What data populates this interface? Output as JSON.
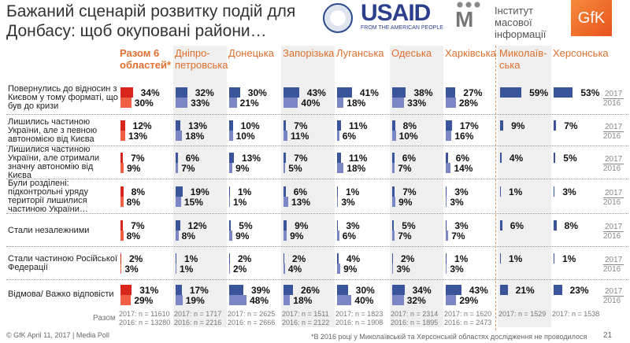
{
  "title": "Бажаний сценарій розвитку подій для Донбасу: щоб окуповані райони…",
  "logos": {
    "usaid": {
      "main": "USAID",
      "sub": "FROM THE AMERICAN PEOPLE"
    },
    "imi": "Інститут масової інформації",
    "gfk": "GfK"
  },
  "colors": {
    "total_2017": "#d9261c",
    "total_2016": "#ee5f44",
    "region_2017": "#3b559c",
    "region_2016": "#7a87c4",
    "header": "#e0702e"
  },
  "chart_data": {
    "type": "bar",
    "orientation": "horizontal",
    "columns": [
      "Разом 6 областей*",
      "Дніпро-петровська",
      "Донецька",
      "Запорізька",
      "Луганська",
      "Одеська",
      "Харківська",
      "Миколаїв-ська",
      "Херсонська"
    ],
    "series_years": [
      "2017",
      "2016"
    ],
    "rows": [
      {
        "label": "Повернулись до відносин з Києвом у тому форматі, що був до кризи",
        "values": [
          [
            "34%",
            "30%"
          ],
          [
            "32%",
            "33%"
          ],
          [
            "30%",
            "21%"
          ],
          [
            "43%",
            "40%"
          ],
          [
            "41%",
            "18%"
          ],
          [
            "38%",
            "33%"
          ],
          [
            "27%",
            "28%"
          ],
          [
            "59%",
            null
          ],
          [
            "53%",
            null
          ]
        ]
      },
      {
        "label": "Лишились частиною України, але з певною автономією від Києва",
        "values": [
          [
            "12%",
            "13%"
          ],
          [
            "13%",
            "18%"
          ],
          [
            "10%",
            "10%"
          ],
          [
            "7%",
            "11%"
          ],
          [
            "11%",
            "6%"
          ],
          [
            "8%",
            "10%"
          ],
          [
            "17%",
            "16%"
          ],
          [
            "9%",
            null
          ],
          [
            "7%",
            null
          ]
        ]
      },
      {
        "label": "Лишилися частиною України, але отримали значну автономію від Києва",
        "values": [
          [
            "7%",
            "9%"
          ],
          [
            "6%",
            "7%"
          ],
          [
            "13%",
            "9%"
          ],
          [
            "7%",
            "5%"
          ],
          [
            "11%",
            "18%"
          ],
          [
            "6%",
            "7%"
          ],
          [
            "6%",
            "14%"
          ],
          [
            "4%",
            null
          ],
          [
            "5%",
            null
          ]
        ]
      },
      {
        "label": "Були розділені: підконтрольні уряду території лишилися частиною України…",
        "values": [
          [
            "8%",
            "8%"
          ],
          [
            "19%",
            "15%"
          ],
          [
            "1%",
            "1%"
          ],
          [
            "6%",
            "13%"
          ],
          [
            "1%",
            "3%"
          ],
          [
            "7%",
            "9%"
          ],
          [
            "3%",
            "3%"
          ],
          [
            "1%",
            null
          ],
          [
            "3%",
            null
          ]
        ]
      },
      {
        "label": "Стали незалежними",
        "values": [
          [
            "7%",
            "8%"
          ],
          [
            "12%",
            "8%"
          ],
          [
            "5%",
            "9%"
          ],
          [
            "9%",
            "9%"
          ],
          [
            "3%",
            "6%"
          ],
          [
            "5%",
            "7%"
          ],
          [
            "3%",
            "7%"
          ],
          [
            "6%",
            null
          ],
          [
            "8%",
            null
          ]
        ]
      },
      {
        "label": "Стали частиною Російської Федерації",
        "values": [
          [
            "2%",
            "3%"
          ],
          [
            "1%",
            "1%"
          ],
          [
            "2%",
            "2%"
          ],
          [
            "2%",
            "4%"
          ],
          [
            "4%",
            "9%"
          ],
          [
            "2%",
            "3%"
          ],
          [
            "1%",
            "3%"
          ],
          [
            "1%",
            null
          ],
          [
            "1%",
            null
          ]
        ]
      },
      {
        "label": "Відмова/ Важко відповісти",
        "values": [
          [
            "31%",
            "29%"
          ],
          [
            "17%",
            "19%"
          ],
          [
            "39%",
            "48%"
          ],
          [
            "26%",
            "18%"
          ],
          [
            "30%",
            "40%"
          ],
          [
            "34%",
            "32%"
          ],
          [
            "43%",
            "29%"
          ],
          [
            "21%",
            null
          ],
          [
            "23%",
            null
          ]
        ]
      }
    ],
    "sample_label": "Разом",
    "samples": [
      [
        "2017: n = 11610",
        "2016: n = 13280"
      ],
      [
        "2017: n = 1717",
        "2016: n = 2216"
      ],
      [
        "2017: n = 2625",
        "2016: n = 2666"
      ],
      [
        "2017: n = 1511",
        "2016: n = 2122"
      ],
      [
        "2017: n = 1823",
        "2016: n = 1908"
      ],
      [
        "2017: n = 2314",
        "2016: n = 1895"
      ],
      [
        "2017: n = 1620",
        "2016: n = 2473"
      ],
      [
        "2017: n = 1529",
        null
      ],
      [
        "2017: n = 1538",
        null
      ]
    ],
    "xlim": [
      0,
      100
    ]
  },
  "footer": {
    "left": "© GfK April 11, 2017 | Media Poll",
    "note": "*В 2016 році у Миколаївській та Херсонській областях дослідження не проводилося",
    "page": "21"
  }
}
